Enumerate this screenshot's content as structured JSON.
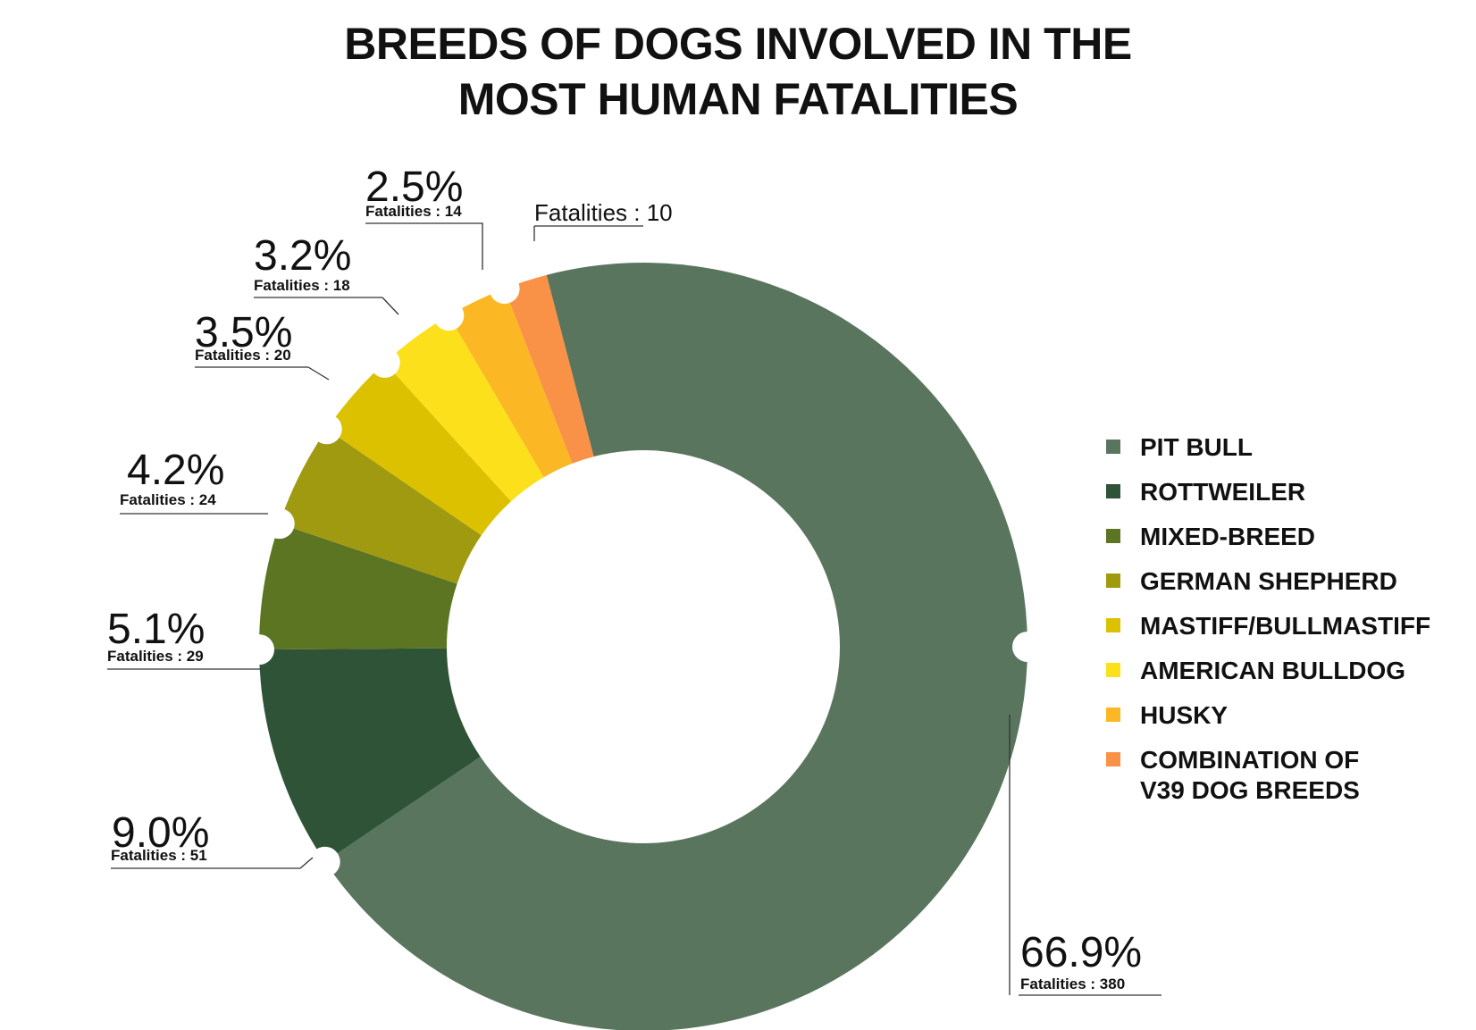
{
  "chart_data": {
    "type": "pie",
    "title": "BREEDS OF DOGS INVOLVED IN THE MOST HUMAN FATALITIES",
    "title_lines": [
      "BREEDS OF DOGS INVOLVED IN THE",
      "MOST HUMAN FATALITIES"
    ],
    "donut": true,
    "legend_position": "right",
    "fatalities_prefix": "Fatalities : ",
    "slices": [
      {
        "label": "PIT BULL",
        "percent": 66.9,
        "pct_text": "66.9%",
        "fatalities": 380,
        "color": "#5a755e"
      },
      {
        "label": "ROTTWEILER",
        "percent": 9.0,
        "pct_text": "9.0%",
        "fatalities": 51,
        "color": "#2f5337"
      },
      {
        "label": "MIXED-BREED",
        "percent": 5.1,
        "pct_text": "5.1%",
        "fatalities": 29,
        "color": "#5b7522"
      },
      {
        "label": "GERMAN SHEPHERD",
        "percent": 4.2,
        "pct_text": "4.2%",
        "fatalities": 24,
        "color": "#9f9a10"
      },
      {
        "label": "MASTIFF/BULLMASTIFF",
        "percent": 3.5,
        "pct_text": "3.5%",
        "fatalities": 20,
        "color": "#dcc100"
      },
      {
        "label": "AMERICAN BULLDOG",
        "percent": 3.2,
        "pct_text": "3.2%",
        "fatalities": 18,
        "color": "#fde01c"
      },
      {
        "label": "HUSKY",
        "percent": 2.5,
        "pct_text": "2.5%",
        "fatalities": 14,
        "color": "#fbb724"
      },
      {
        "label": "COMBINATION OF V39 DOG BREEDS",
        "label_lines": [
          "COMBINATION OF",
          "V39 DOG BREEDS"
        ],
        "percent": null,
        "pct_text": "",
        "fatalities": 10,
        "color": "#f99146"
      }
    ]
  }
}
